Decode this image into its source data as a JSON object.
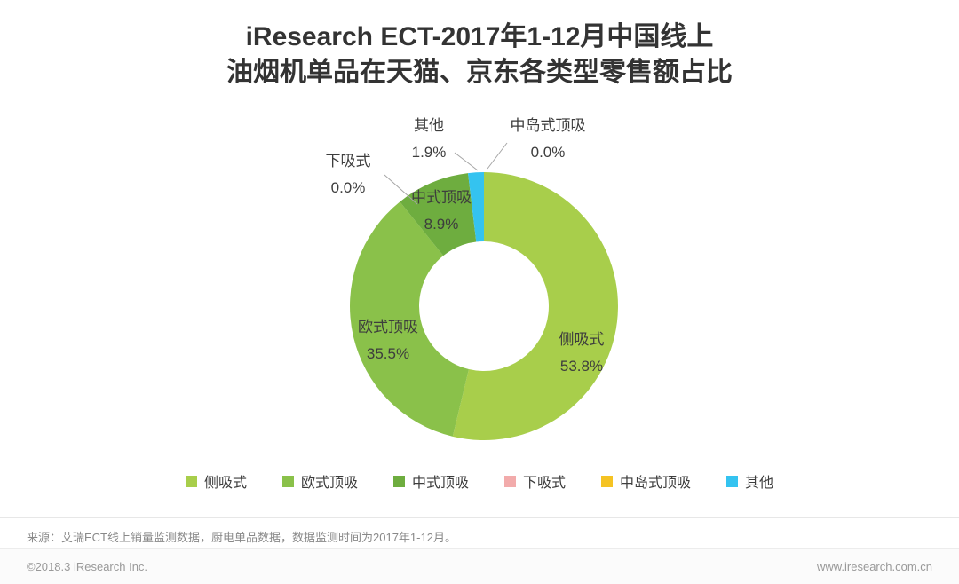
{
  "title": {
    "line1": "iResearch ECT-2017年1-12月中国线上",
    "line2": "油烟机单品在天猫、京东各类型零售额占比"
  },
  "chart_data": {
    "type": "pie",
    "donut": true,
    "title": "iResearch ECT-2017年1-12月中国线上油烟机单品在天猫、京东各类型零售额占比",
    "unit": "%",
    "legend_position": "bottom",
    "categories": [
      "侧吸式",
      "欧式顶吸",
      "中式顶吸",
      "下吸式",
      "中岛式顶吸",
      "其他"
    ],
    "values": [
      53.8,
      35.5,
      8.9,
      0.0,
      0.0,
      1.9
    ],
    "colors": [
      "#A8CE4B",
      "#8AC14A",
      "#6EAD3F",
      "#F2ABAB",
      "#F5C323",
      "#34C3F0"
    ],
    "slices": [
      {
        "name": "侧吸式",
        "value": 53.8,
        "label": "53.8%",
        "color": "#A8CE4B"
      },
      {
        "name": "欧式顶吸",
        "value": 35.5,
        "label": "35.5%",
        "color": "#8AC14A"
      },
      {
        "name": "中式顶吸",
        "value": 8.9,
        "label": "8.9%",
        "color": "#6EAD3F"
      },
      {
        "name": "下吸式",
        "value": 0.0,
        "label": "0.0%",
        "color": "#F2ABAB"
      },
      {
        "name": "中岛式顶吸",
        "value": 0.0,
        "label": "0.0%",
        "color": "#F5C323"
      },
      {
        "name": "其他",
        "value": 1.9,
        "label": "1.9%",
        "color": "#34C3F0"
      }
    ]
  },
  "source": "来源：艾瑞ECT线上销量监测数据，厨电单品数据，数据监测时间为2017年1-12月。",
  "footer": {
    "copyright": "©2018.3 iResearch Inc.",
    "website": "www.iresearch.com.cn"
  }
}
